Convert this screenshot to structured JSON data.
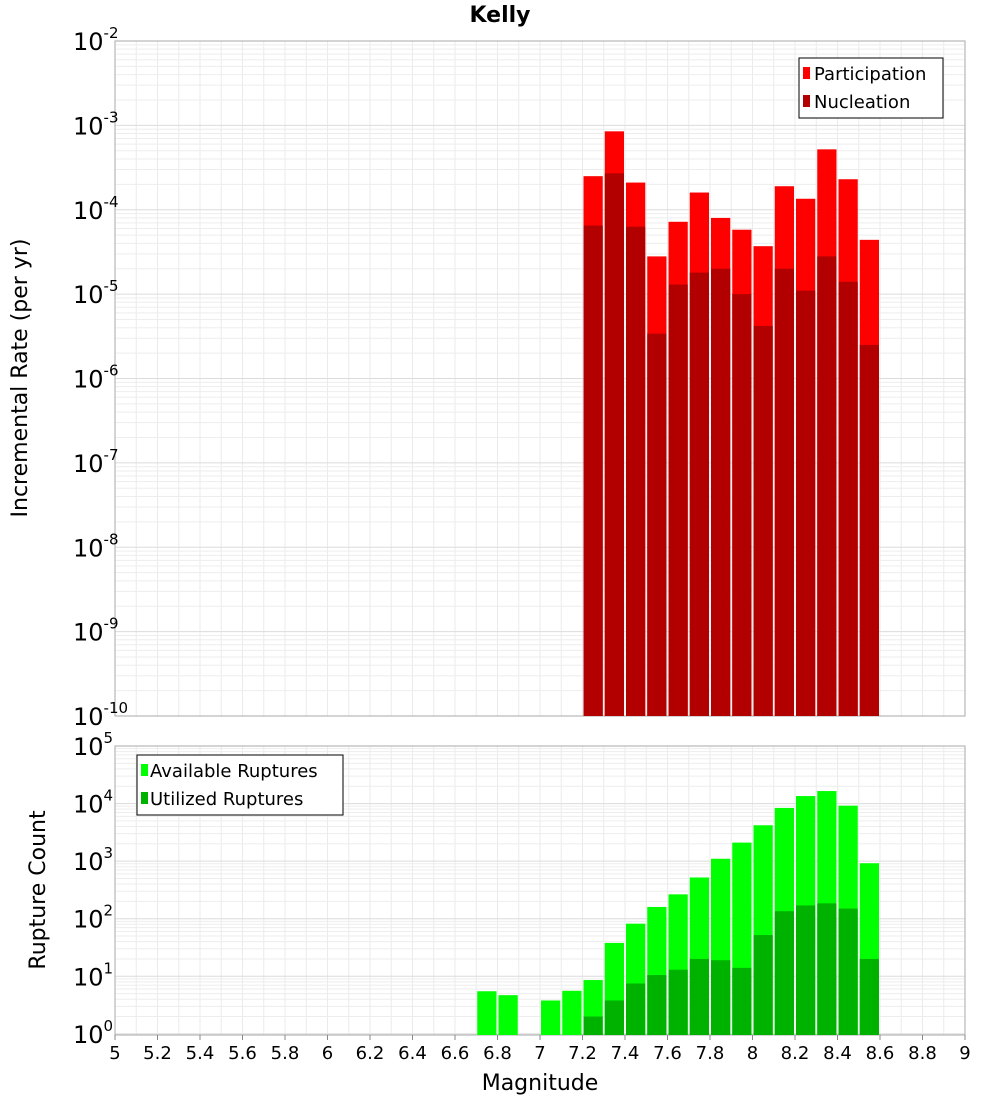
{
  "chart_data": {
    "title": "Kelly",
    "xlabel": "Magnitude",
    "xlim": [
      5,
      9
    ],
    "x_ticks": [
      "5",
      "5.2",
      "5.4",
      "5.6",
      "5.8",
      "6",
      "6.2",
      "6.4",
      "6.6",
      "6.8",
      "7",
      "7.2",
      "7.4",
      "7.6",
      "7.8",
      "8",
      "8.2",
      "8.4",
      "8.6",
      "8.8",
      "9"
    ],
    "bin_width": 0.1,
    "panels": [
      {
        "type": "bar",
        "scale": "log",
        "ylabel": "Incremental Rate (per yr)",
        "ylim_exp": [
          -10,
          -2
        ],
        "y_tick_base": "10",
        "y_tick_exponents": [
          "-10",
          "-9",
          "-8",
          "-7",
          "-6",
          "-5",
          "-4",
          "-3",
          "-2"
        ],
        "legend_position": "top-right",
        "legend_colors": [
          "#ff0000",
          "#b20000"
        ],
        "series": [
          {
            "name": "Participation",
            "color": "#ff0000",
            "x": [
              7.25,
              7.35,
              7.45,
              7.55,
              7.65,
              7.75,
              7.85,
              7.95,
              8.05,
              8.15,
              8.25,
              8.35,
              8.45,
              8.55
            ],
            "values": [
              0.00025,
              0.00085,
              0.00021,
              2.8e-05,
              7.2e-05,
              0.00016,
              8e-05,
              5.8e-05,
              3.7e-05,
              0.00019,
              0.000135,
              0.00052,
              0.00023,
              4.4e-05
            ]
          },
          {
            "name": "Nucleation",
            "color": "#b20000",
            "x": [
              7.25,
              7.35,
              7.45,
              7.55,
              7.65,
              7.75,
              7.85,
              7.95,
              8.05,
              8.15,
              8.25,
              8.35,
              8.45,
              8.55
            ],
            "values": [
              6.5e-05,
              0.00027,
              6.3e-05,
              3.4e-06,
              1.3e-05,
              1.8e-05,
              2e-05,
              1e-05,
              4.2e-06,
              2e-05,
              1.1e-05,
              2.8e-05,
              1.4e-05,
              2.5e-06
            ]
          }
        ]
      },
      {
        "type": "bar",
        "scale": "log",
        "ylabel": "Rupture Count",
        "ylim_exp": [
          -0.02,
          5
        ],
        "y_tick_base": "10",
        "y_tick_exponents": [
          "0",
          "1",
          "2",
          "3",
          "4",
          "5"
        ],
        "legend_position": "top-left",
        "legend_colors": [
          "#00ff00",
          "#00b200"
        ],
        "series": [
          {
            "name": "Available Ruptures",
            "color": "#00ff00",
            "x": [
              6.75,
              6.85,
              7.05,
              7.15,
              7.25,
              7.35,
              7.45,
              7.55,
              7.65,
              7.75,
              7.85,
              7.95,
              8.05,
              8.15,
              8.25,
              8.35,
              8.45,
              8.55
            ],
            "values": [
              5.5,
              4.7,
              3.8,
              5.6,
              8.6,
              38,
              82,
              160,
              265,
              520,
              1100,
              2100,
              4200,
              8400,
              13500,
              16500,
              9200,
              920
            ]
          },
          {
            "name": "Utilized Ruptures",
            "color": "#00b200",
            "x": [
              7.25,
              7.35,
              7.45,
              7.55,
              7.65,
              7.75,
              7.85,
              7.95,
              8.05,
              8.15,
              8.25,
              8.35,
              8.45,
              8.55
            ],
            "values": [
              2.0,
              3.8,
              7.5,
              10.5,
              13,
              20,
              19,
              14,
              52,
              135,
              170,
              185,
              150,
              20
            ]
          }
        ]
      }
    ]
  }
}
